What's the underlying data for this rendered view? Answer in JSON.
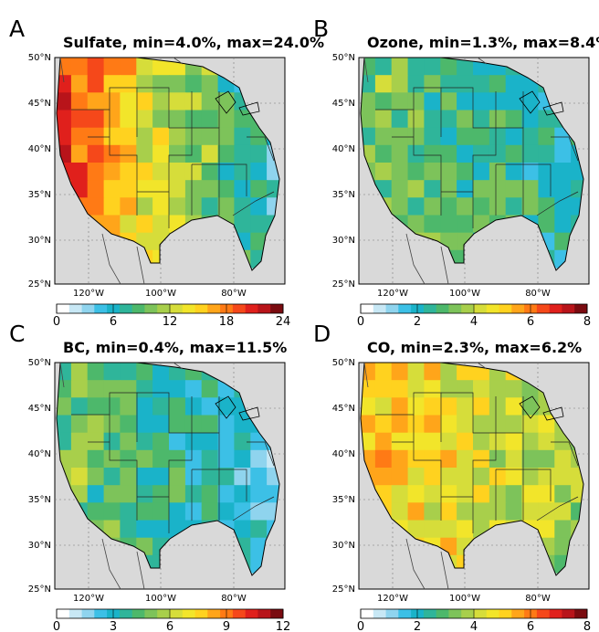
{
  "panels": [
    {
      "letter": "A",
      "title": "Sulfate, min=4.0%, max=24.0%",
      "vmin": 0,
      "vmax": 24,
      "cbar_ticks": [
        "0",
        "6",
        "12",
        "18",
        "24"
      ],
      "west_mean": 0.82,
      "east_mean": 0.22
    },
    {
      "letter": "B",
      "title": "Ozone, min=1.3%, max=8.4%",
      "vmin": 0,
      "vmax": 8,
      "cbar_ticks": [
        "0",
        "2",
        "4",
        "6",
        "8"
      ],
      "west_mean": 0.42,
      "east_mean": 0.28
    },
    {
      "letter": "C",
      "title": "BC, min=0.4%, max=11.5%",
      "vmin": 0,
      "vmax": 12,
      "cbar_ticks": [
        "0",
        "3",
        "6",
        "9",
        "12"
      ],
      "west_mean": 0.42,
      "east_mean": 0.2
    },
    {
      "letter": "D",
      "title": "CO, min=2.3%, max=6.2%",
      "vmin": 0,
      "vmax": 8,
      "cbar_ticks": [
        "0",
        "2",
        "4",
        "6",
        "8"
      ],
      "west_mean": 0.66,
      "east_mean": 0.45
    }
  ],
  "lat_ticks": [
    "50°N",
    "45°N",
    "40°N",
    "35°N",
    "30°N",
    "25°N"
  ],
  "lon_ticks": [
    "120°W",
    "100°W",
    "80°W"
  ],
  "colormap": [
    "#ffffff",
    "#c8e8f5",
    "#8fd4ee",
    "#3cc0e6",
    "#1ab3c9",
    "#2fb59a",
    "#4db86b",
    "#7dc35a",
    "#a8cf4b",
    "#d6dd3a",
    "#f2e52a",
    "#ffd21f",
    "#ffa51a",
    "#ff7a15",
    "#f5481a",
    "#e0201c",
    "#b8141a",
    "#7a0b10"
  ],
  "map_background": "#d9d9d9"
}
